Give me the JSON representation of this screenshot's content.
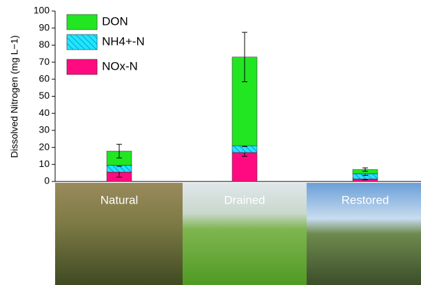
{
  "chart_data": {
    "type": "stacked-bar",
    "y_label": "Dissolved Nitrogen (mg L−1)",
    "categories": [
      "Natural",
      "Drained",
      "Restored"
    ],
    "series": [
      {
        "name": "NOx-N",
        "color": "#ff0a80",
        "values": [
          5.5,
          17,
          1.5
        ],
        "errors": [
          3,
          2.2,
          0.5
        ]
      },
      {
        "name": "NH4+-N",
        "color": "#1ee6ff",
        "hatch": true,
        "values": [
          4,
          4,
          3
        ],
        "errors": [
          0.6,
          0.5,
          1
        ]
      },
      {
        "name": "DON",
        "color": "#22e622",
        "values": [
          8.3,
          52,
          2.5
        ],
        "errors": [
          4,
          14.5,
          1
        ]
      }
    ],
    "ylim": [
      0,
      100
    ],
    "yticks": [
      0,
      10,
      20,
      30,
      40,
      50,
      60,
      70,
      80,
      90,
      100
    ]
  }
}
